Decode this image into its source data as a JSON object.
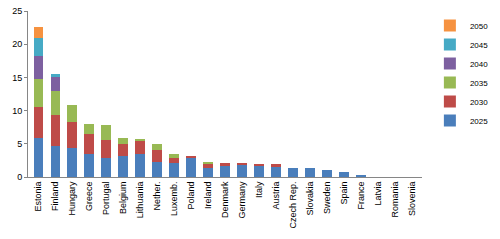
{
  "chart_data": {
    "type": "bar",
    "stacked": true,
    "grid": false,
    "legend": "right",
    "categories": [
      "Estonia",
      "Finland",
      "Hungary",
      "Greece",
      "Portugal",
      "Belgium",
      "Lithuania",
      "Nether.",
      "Luxemb.",
      "Poland",
      "Ireland",
      "Denmark",
      "Germany",
      "Italy",
      "Austria",
      "Czech Rep.",
      "Slovakia",
      "Sweden",
      "Spain",
      "France",
      "Latvia",
      "Romania",
      "Slovenia"
    ],
    "ylim": [
      0,
      25
    ],
    "yticks": [
      0,
      5,
      10,
      15,
      20,
      25
    ],
    "series": [
      {
        "name": "2025",
        "color": "#4a7ebb",
        "values": [
          5.8,
          4.7,
          4.3,
          3.4,
          2.9,
          3.2,
          3.4,
          2.3,
          2.1,
          2.9,
          1.3,
          1.7,
          1.9,
          1.6,
          1.5,
          1.3,
          1.3,
          1.0,
          0.7,
          0.2,
          0,
          0,
          0
        ]
      },
      {
        "name": "2030",
        "color": "#be4b48",
        "values": [
          4.8,
          4.7,
          4.0,
          3.1,
          2.7,
          1.8,
          2.1,
          1.7,
          0.7,
          0.3,
          0.7,
          0.4,
          0.1,
          0.3,
          0.4,
          0,
          0,
          0,
          0,
          0,
          0,
          0,
          0
        ]
      },
      {
        "name": "2035",
        "color": "#98b954",
        "values": [
          4.2,
          3.6,
          2.5,
          1.5,
          2.2,
          0.8,
          0.2,
          0.9,
          0.6,
          0,
          0.2,
          0,
          0,
          0,
          0,
          0,
          0,
          0,
          0,
          0,
          0,
          0,
          0
        ]
      },
      {
        "name": "2040",
        "color": "#7d60a0",
        "values": [
          3.4,
          2.0,
          0,
          0,
          0,
          0,
          0,
          0,
          0,
          0,
          0,
          0,
          0,
          0,
          0,
          0,
          0,
          0,
          0,
          0,
          0,
          0,
          0
        ]
      },
      {
        "name": "2045",
        "color": "#46aac5",
        "values": [
          2.8,
          0.5,
          0,
          0,
          0,
          0,
          0,
          0,
          0,
          0,
          0,
          0,
          0,
          0,
          0,
          0,
          0,
          0,
          0,
          0,
          0,
          0,
          0
        ]
      },
      {
        "name": "2050",
        "color": "#f69240",
        "values": [
          1.6,
          0,
          0,
          0,
          0,
          0,
          0,
          0,
          0,
          0,
          0,
          0,
          0,
          0,
          0,
          0,
          0,
          0,
          0,
          0,
          0,
          0,
          0
        ]
      }
    ]
  }
}
